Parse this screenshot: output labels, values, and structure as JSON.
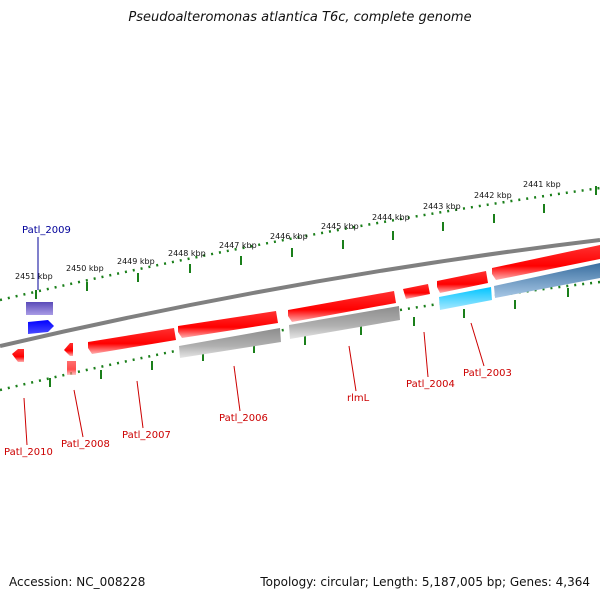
{
  "header": {
    "title": "Pseudoalteromonas atlantica T6c, complete genome"
  },
  "footer": {
    "accession": "Accession: NC_008228",
    "summary": "Topology: circular; Length: 5,187,005 bp; Genes: 4,364"
  },
  "colors": {
    "backbone": "#808080",
    "cds_red": "#ff0000",
    "cds_gray": "#a8a8a8",
    "cds_blue": "#0000ff",
    "cds_purple": "#6a5acd",
    "cds_cyan": "#00bfff",
    "cds_steel": "#4682b4",
    "tick_green": "#1a7f1a",
    "label_red": "#cc0000",
    "label_blue": "#000099"
  },
  "ruler": {
    "labels": [
      "2441 kbp",
      "2442 kbp",
      "2443 kbp",
      "2444 kbp",
      "2445 kbp",
      "2446 kbp",
      "2447 kbp",
      "2448 kbp",
      "2449 kbp",
      "2450 kbp",
      "2451 kbp"
    ]
  },
  "genes": [
    {
      "name": "Patl_2009",
      "color": "label_blue"
    },
    {
      "name": "Patl_2010",
      "color": "label_red"
    },
    {
      "name": "Patl_2008",
      "color": "label_red"
    },
    {
      "name": "Patl_2007",
      "color": "label_red"
    },
    {
      "name": "Patl_2006",
      "color": "label_red"
    },
    {
      "name": "rlmL",
      "color": "label_red"
    },
    {
      "name": "Patl_2004",
      "color": "label_red"
    },
    {
      "name": "Patl_2003",
      "color": "label_red"
    }
  ]
}
